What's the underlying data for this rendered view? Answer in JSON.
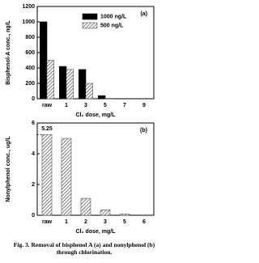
{
  "chart_data": [
    {
      "type": "bar",
      "annotation": "(a)",
      "xlabel": "Cl₂ dose, mg/L",
      "ylabel": "Bisphenol-A conc., ng/L",
      "categories": [
        "raw",
        "1",
        "3",
        "5",
        "7",
        "9"
      ],
      "series": [
        {
          "name": "1000 ng/L",
          "color": "#000000",
          "hatch": false,
          "values": [
            1000,
            420,
            380,
            40,
            0,
            0
          ]
        },
        {
          "name": "500 ng/L",
          "color": "#555555",
          "hatch": true,
          "values": [
            500,
            380,
            200,
            5,
            0,
            0
          ]
        }
      ],
      "ylim": [
        0,
        1200
      ],
      "yticks": [
        0,
        200,
        400,
        600,
        800,
        1000,
        1200
      ],
      "legend": "upper right"
    },
    {
      "type": "bar",
      "annotation": "(b)",
      "xlabel": "Cl₂ dose, mg/L",
      "ylabel": "Nonylphenol conc., ug/L",
      "categories": [
        "raw",
        "1",
        "2",
        "3",
        "5",
        "6"
      ],
      "series": [
        {
          "name": "Nonylphenol",
          "color": "#555555",
          "hatch": true,
          "values": [
            5.25,
            5.0,
            1.1,
            0.35,
            0.08,
            0
          ]
        }
      ],
      "ylim": [
        0,
        6
      ],
      "yticks": [
        0,
        2,
        4,
        6
      ],
      "legend": "none",
      "reference_label": true
    }
  ],
  "caption": "Fig. 3. Removal of bisphenol A (a) and nonylphenol (b) through chlorination."
}
